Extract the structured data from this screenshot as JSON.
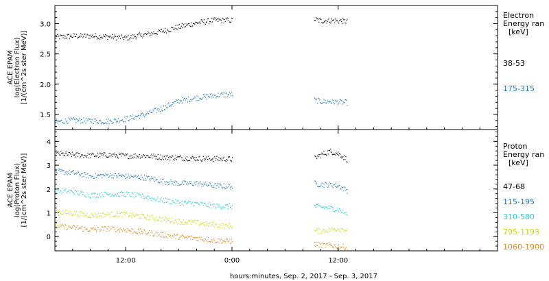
{
  "chart_data": [
    {
      "type": "scatter",
      "ylabel_lines": [
        "ACE EPAM",
        "log(Electron Flux)",
        "[1/(cm^2s ster MeV)]"
      ],
      "legend_header": [
        "Electron",
        "Energy ran",
        "[keV]"
      ],
      "ylim": [
        1.25,
        3.3
      ],
      "yticks": [
        "1.5",
        "2.0",
        "2.5",
        "3.0"
      ],
      "series": [
        {
          "name": "38-53",
          "color": "#000000",
          "segments": [
            {
              "x": [
                4,
                6,
                8,
                10,
                12,
                14,
                16,
                18,
                20,
                22,
                24
              ],
              "y": [
                2.78,
                2.8,
                2.8,
                2.79,
                2.77,
                2.82,
                2.88,
                2.95,
                3.02,
                3.06,
                3.06
              ]
            },
            {
              "x": [
                33.3,
                34,
                35,
                36,
                37
              ],
              "y": [
                3.08,
                3.05,
                3.06,
                3.05,
                3.04
              ]
            }
          ]
        },
        {
          "name": "175-315",
          "color": "#1f77c8",
          "segments": [
            {
              "x": [
                4,
                6,
                8,
                10,
                12,
                14,
                16,
                18,
                20,
                22,
                24
              ],
              "y": [
                1.38,
                1.41,
                1.4,
                1.39,
                1.43,
                1.5,
                1.6,
                1.73,
                1.78,
                1.82,
                1.84
              ]
            },
            {
              "x": [
                33.3,
                34,
                35,
                36,
                37
              ],
              "y": [
                1.74,
                1.72,
                1.72,
                1.71,
                1.7
              ]
            }
          ]
        }
      ]
    },
    {
      "type": "scatter",
      "ylabel_lines": [
        "ACE EPAM",
        "log(Proton Flux)",
        "[1/(cm^2s ster MeV)]"
      ],
      "legend_header": [
        "Proton",
        "Energy ran",
        "[keV]"
      ],
      "ylim": [
        -0.6,
        4.5
      ],
      "yticks": [
        "0",
        "1",
        "2",
        "3",
        "4"
      ],
      "xticks": [
        "12:00",
        "0:00",
        "12:00"
      ],
      "xtick_hours": [
        12,
        24,
        36
      ],
      "xlim_hours": [
        4,
        54
      ],
      "xlabel": "hours:minutes, Sep.  2, 2017 - Sep.  3, 2017",
      "series": [
        {
          "name": "47-68",
          "color": "#000000",
          "segments": [
            {
              "x": [
                4,
                6,
                8,
                10,
                12,
                14,
                16,
                18,
                20,
                22,
                24
              ],
              "y": [
                3.5,
                3.45,
                3.42,
                3.45,
                3.4,
                3.42,
                3.36,
                3.33,
                3.3,
                3.28,
                3.27
              ]
            },
            {
              "x": [
                33.3,
                34,
                35,
                36,
                37
              ],
              "y": [
                3.3,
                3.45,
                3.6,
                3.5,
                3.25
              ]
            }
          ]
        },
        {
          "name": "115-195",
          "color": "#1f77c8",
          "segments": [
            {
              "x": [
                4,
                6,
                8,
                10,
                12,
                14,
                16,
                18,
                20,
                22,
                24
              ],
              "y": [
                2.75,
                2.7,
                2.55,
                2.6,
                2.55,
                2.5,
                2.35,
                2.25,
                2.25,
                2.15,
                2.12
              ]
            },
            {
              "x": [
                33.3,
                34,
                35,
                36,
                37
              ],
              "y": [
                2.25,
                2.2,
                2.2,
                2.15,
                1.95
              ]
            }
          ]
        },
        {
          "name": "310-580",
          "color": "#22d3d3",
          "segments": [
            {
              "x": [
                4,
                6,
                8,
                10,
                12,
                14,
                16,
                18,
                20,
                22,
                24
              ],
              "y": [
                1.95,
                1.9,
                1.75,
                1.8,
                1.8,
                1.7,
                1.55,
                1.45,
                1.4,
                1.3,
                1.28
              ]
            },
            {
              "x": [
                33.3,
                34,
                35,
                36,
                37
              ],
              "y": [
                1.3,
                1.25,
                1.22,
                1.15,
                0.95
              ]
            }
          ]
        },
        {
          "name": "795-1193",
          "color": "#c8dc00",
          "segments": [
            {
              "x": [
                4,
                6,
                8,
                10,
                12,
                14,
                16,
                18,
                20,
                22,
                24
              ],
              "y": [
                1.05,
                1.0,
                0.9,
                0.95,
                0.95,
                0.85,
                0.75,
                0.65,
                0.6,
                0.5,
                0.45
              ]
            },
            {
              "x": [
                33.3,
                34,
                35,
                36,
                37
              ],
              "y": [
                0.25,
                0.25,
                0.3,
                0.35,
                0.3
              ]
            }
          ]
        },
        {
          "name": "1060-1900",
          "color": "#e8861a",
          "segments": [
            {
              "x": [
                4,
                6,
                8,
                10,
                12,
                14,
                16,
                18,
                20,
                22,
                24
              ],
              "y": [
                0.45,
                0.4,
                0.3,
                0.35,
                0.3,
                0.2,
                0.1,
                0.0,
                -0.05,
                -0.15,
                -0.18
              ]
            },
            {
              "x": [
                33.3,
                34,
                35,
                36,
                37
              ],
              "y": [
                -0.3,
                -0.35,
                -0.35,
                -0.4,
                -0.45
              ]
            }
          ]
        }
      ]
    }
  ]
}
